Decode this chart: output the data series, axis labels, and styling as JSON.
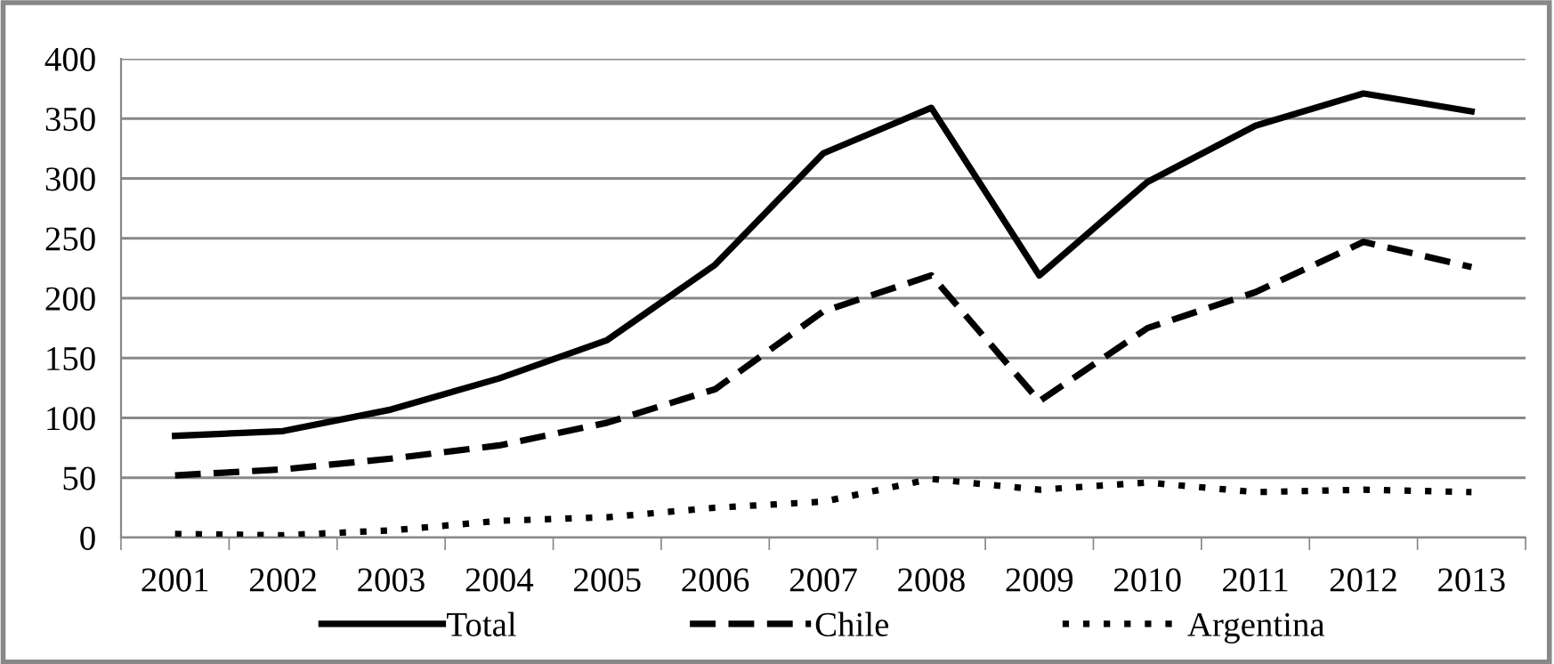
{
  "chart_data": {
    "type": "line",
    "categories": [
      "2001",
      "2002",
      "2003",
      "2004",
      "2005",
      "2006",
      "2007",
      "2008",
      "2009",
      "2010",
      "2011",
      "2012",
      "2013"
    ],
    "series": [
      {
        "name": "Total",
        "color": "#000000",
        "line_style": "solid",
        "values": [
          85,
          89,
          107,
          133,
          165,
          228,
          321,
          359,
          219,
          297,
          344,
          371,
          356
        ]
      },
      {
        "name": "Chile",
        "color": "#000000",
        "line_style": "dashed",
        "values": [
          52,
          57,
          66,
          77,
          96,
          124,
          189,
          219,
          114,
          175,
          205,
          247,
          226
        ]
      },
      {
        "name": "Argentina",
        "color": "#000000",
        "line_style": "dotted",
        "values": [
          3,
          2,
          6,
          14,
          17,
          25,
          30,
          49,
          40,
          46,
          38,
          40,
          38
        ]
      }
    ],
    "ylim": [
      0,
      400
    ],
    "yticks": [
      0,
      50,
      100,
      150,
      200,
      250,
      300,
      350,
      400
    ],
    "grid": "y",
    "legend": "bottom",
    "marker": "none"
  }
}
